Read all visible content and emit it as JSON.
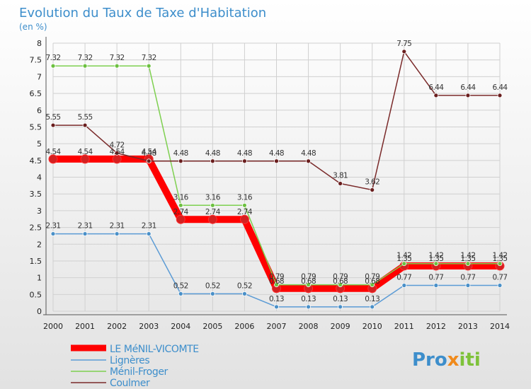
{
  "chart_data": {
    "type": "line",
    "title": "Evolution du Taux de Taxe d'Habitation",
    "subtitle": "(en %)",
    "categories": [
      "2000",
      "2001",
      "2002",
      "2003",
      "2004",
      "2005",
      "2006",
      "2007",
      "2008",
      "2009",
      "2010",
      "2011",
      "2012",
      "2013",
      "2014"
    ],
    "ylim": [
      0,
      8
    ],
    "yticks": [
      "0",
      "0.5",
      "1",
      "1.5",
      "2",
      "2.5",
      "3",
      "3.5",
      "4",
      "4.5",
      "5",
      "5.5",
      "6",
      "6.5",
      "7",
      "7.5",
      "8"
    ],
    "grid": true,
    "legend_position": "bottom-left",
    "series": [
      {
        "name": "LE MéNIL-VICOMTE",
        "color": "#ff0000",
        "marker_color": "#d42020",
        "values": [
          4.54,
          4.54,
          4.54,
          4.54,
          2.74,
          2.74,
          2.74,
          0.68,
          0.68,
          0.68,
          0.68,
          1.35,
          1.35,
          1.35,
          1.35
        ],
        "labels": [
          "4.54",
          "4.54",
          "4.54",
          "4.54",
          "2.74",
          "2.74",
          "2.74",
          "0.68",
          "0.68",
          "0.68",
          "0.68",
          "1.35",
          "1.35",
          "1.35",
          "1.35"
        ]
      },
      {
        "name": "Lignères",
        "color": "#5b9bd5",
        "marker_color": "#4a90c8",
        "values": [
          2.31,
          2.31,
          2.31,
          2.31,
          0.52,
          0.52,
          0.52,
          0.13,
          0.13,
          0.13,
          0.13,
          0.77,
          0.77,
          0.77,
          0.77
        ],
        "labels": [
          "2.31",
          "2.31",
          "2.31",
          "2.31",
          "0.52",
          "0.52",
          "0.52",
          "0.13",
          "0.13",
          "0.13",
          "0.13",
          "0.77",
          "0.77",
          "0.77",
          "0.77"
        ]
      },
      {
        "name": "Ménil-Froger",
        "color": "#7ed050",
        "marker_color": "#6cc040",
        "values": [
          7.32,
          7.32,
          7.32,
          7.32,
          3.16,
          3.16,
          3.16,
          0.79,
          0.79,
          0.79,
          0.79,
          1.42,
          1.42,
          1.42,
          1.42
        ],
        "labels": [
          "7.32",
          "7.32",
          "7.32",
          "7.32",
          "3.16",
          "3.16",
          "3.16",
          "0.79",
          "0.79",
          "0.79",
          "0.79",
          "1.42",
          "1.42",
          "1.42",
          "1.42"
        ]
      },
      {
        "name": "Coulmer",
        "color": "#7a2a2a",
        "marker_color": "#6a1e1e",
        "values": [
          5.55,
          5.55,
          4.72,
          4.48,
          4.48,
          4.48,
          4.48,
          4.48,
          4.48,
          3.81,
          3.62,
          7.75,
          6.44,
          6.44,
          6.44
        ],
        "labels": [
          "5.55",
          "5.55",
          "4.72",
          "4.48",
          "4.48",
          "4.48",
          "4.48",
          "4.48",
          "4.48",
          "3.81",
          "3.62",
          "7.75",
          "6.44",
          "6.44",
          "6.44"
        ]
      }
    ]
  },
  "logo": {
    "part1": "Pro",
    "part2": "x",
    "part3": "iti"
  }
}
